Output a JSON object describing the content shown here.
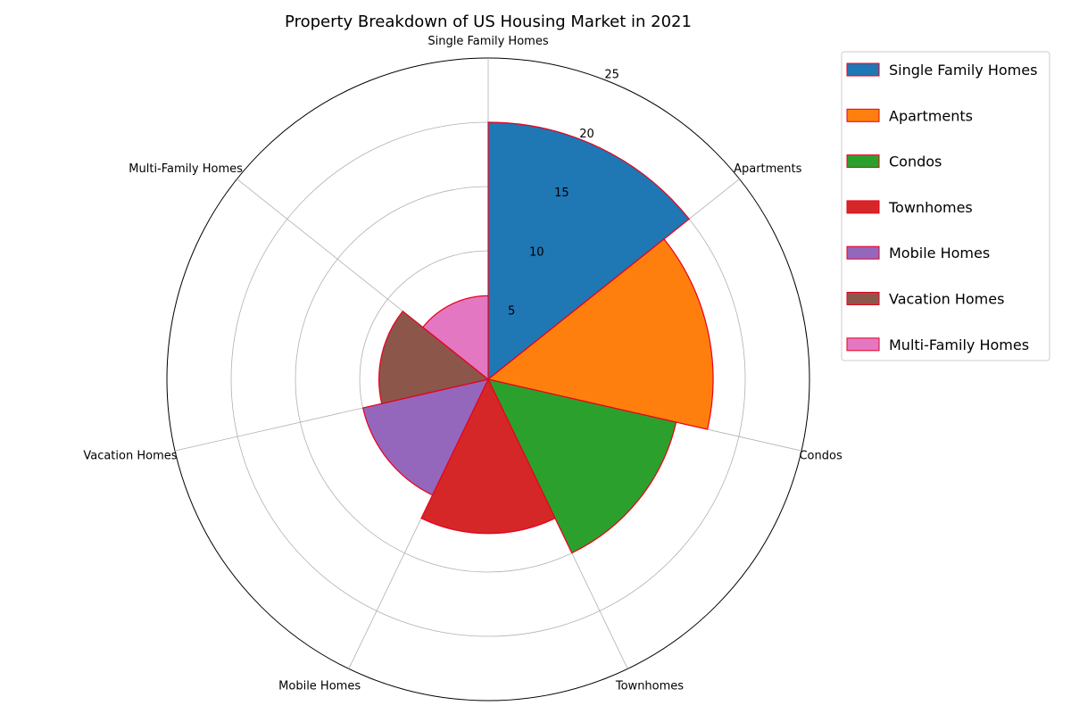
{
  "chart_data": {
    "type": "polar-bar",
    "title": "Property Breakdown of US Housing Market in 2021",
    "categories": [
      "Single Family Homes",
      "Apartments",
      "Condos",
      "Townhomes",
      "Mobile Homes",
      "Vacation Homes",
      "Multi-Family Homes"
    ],
    "values": [
      20,
      17.5,
      15,
      12,
      10,
      8.5,
      6.5
    ],
    "colors": [
      "#1f77b4",
      "#ff7f0e",
      "#2ca02c",
      "#d62728",
      "#9467bd",
      "#8c564b",
      "#e377c2"
    ],
    "edge_color": "#e8001c",
    "radial_ticks": [
      "5",
      "10",
      "15",
      "20",
      "25"
    ],
    "rmax": 25,
    "grid": true,
    "legend": "outside-right"
  }
}
